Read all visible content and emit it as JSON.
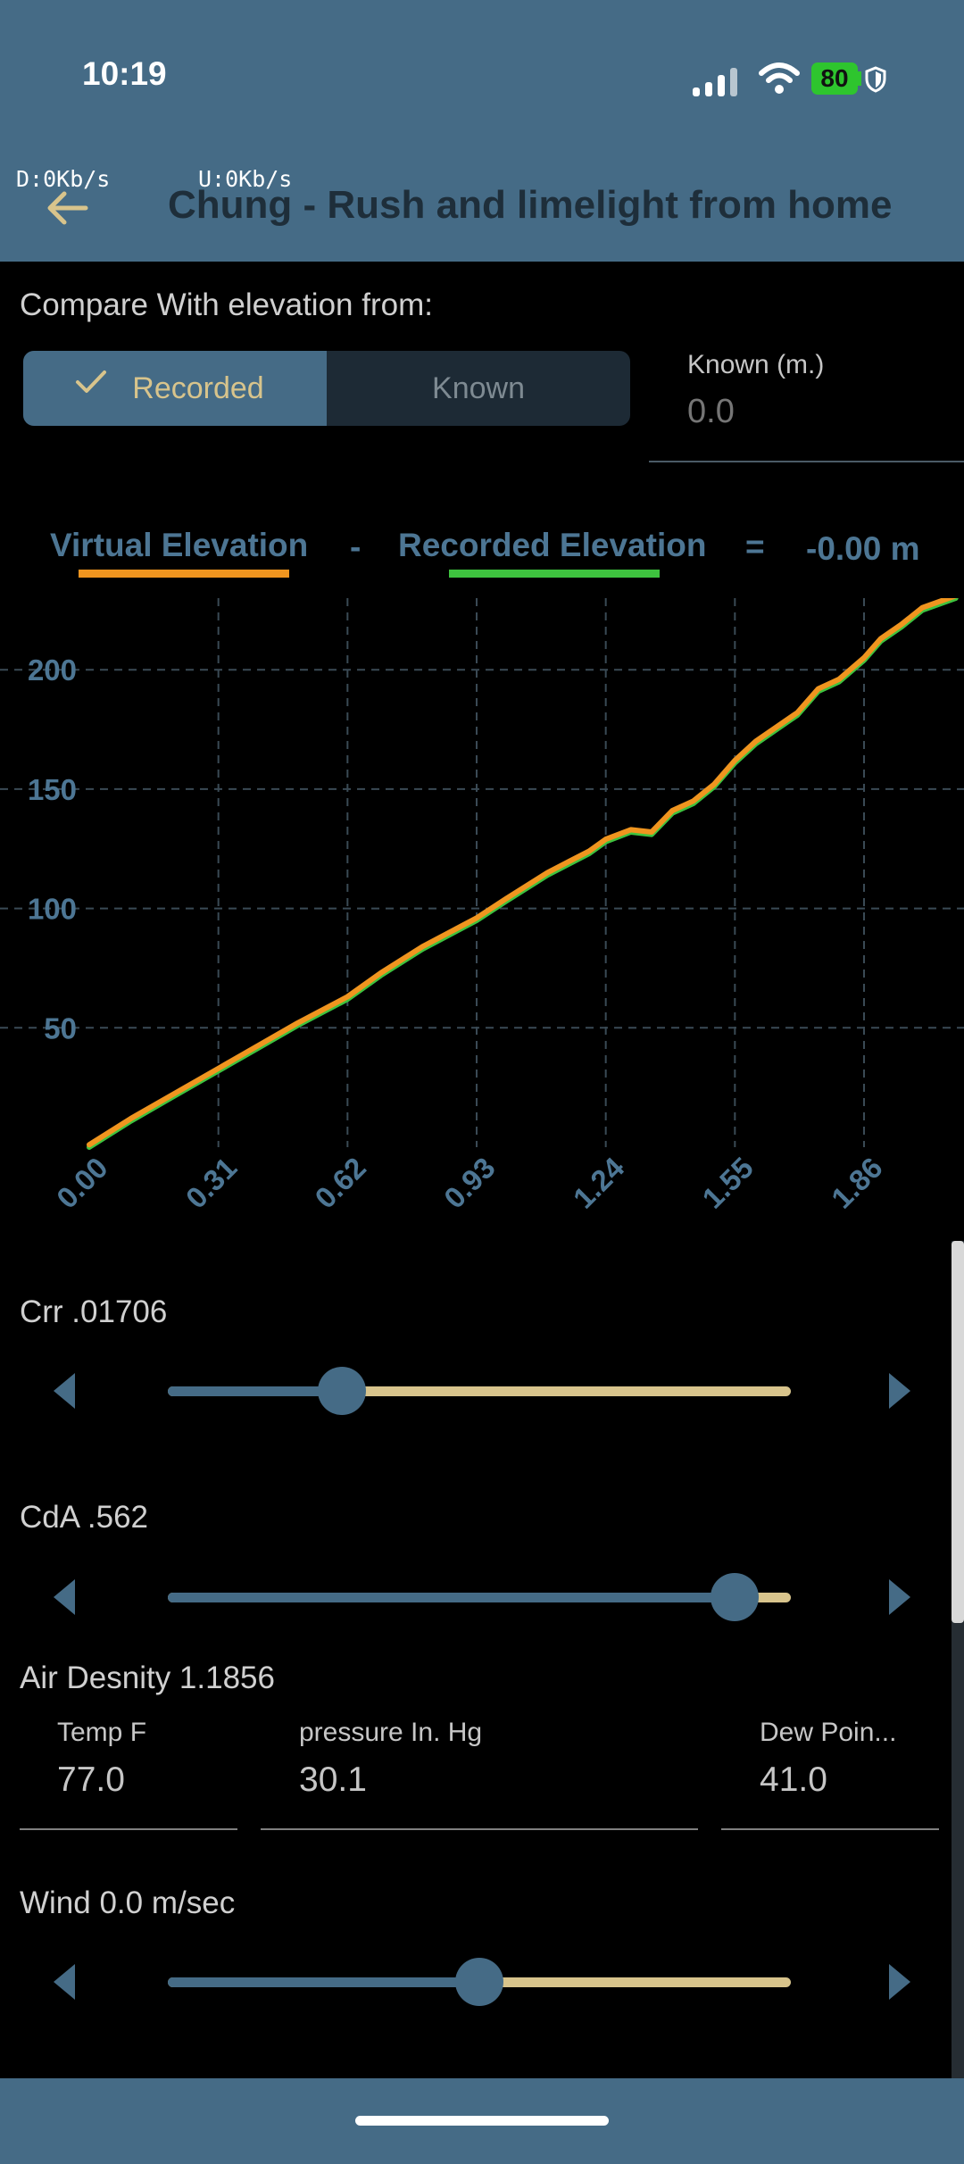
{
  "status_bar": {
    "time": "10:19",
    "battery": "80",
    "icons": [
      "signal-icon",
      "wifi-icon",
      "battery-icon",
      "shield-icon"
    ]
  },
  "app_bar": {
    "download": "D:0Kb/s",
    "upload": "U:0Kb/s",
    "title": "Chung - Rush and limelight from home",
    "back_icon": "arrow-left-icon"
  },
  "compare": {
    "label": "Compare With elevation from:",
    "options": [
      "Recorded",
      "Known"
    ],
    "selected": "Recorded",
    "known_label": "Known (m.)",
    "known_placeholder": "0.0"
  },
  "legend": {
    "virtual": "Virtual Elevation",
    "minus": "-",
    "recorded": "Recorded Elevation",
    "equals": "=",
    "difference": "-0.00 m",
    "virtual_color": "#f0951f",
    "recorded_color": "#3ec33f"
  },
  "chart_data": {
    "type": "line",
    "x_ticks": [
      "0.00",
      "0.31",
      "0.62",
      "0.93",
      "1.24",
      "1.55",
      "1.86"
    ],
    "y_ticks": [
      "50",
      "100",
      "150",
      "200"
    ],
    "xlim": [
      0,
      2.1
    ],
    "ylim": [
      0,
      230
    ],
    "grid": true,
    "series": [
      {
        "name": "Virtual Elevation",
        "color": "#f0951f",
        "x": [
          0,
          0.1,
          0.2,
          0.31,
          0.4,
          0.5,
          0.62,
          0.7,
          0.8,
          0.93,
          1.0,
          1.1,
          1.2,
          1.24,
          1.3,
          1.35,
          1.4,
          1.45,
          1.5,
          1.55,
          1.6,
          1.7,
          1.75,
          1.8,
          1.86,
          1.9,
          1.95,
          2.0,
          2.08
        ],
        "y": [
          1,
          12,
          22,
          33,
          42,
          52,
          63,
          73,
          84,
          96,
          104,
          115,
          124,
          129,
          133,
          132,
          141,
          145,
          152,
          162,
          170,
          182,
          192,
          196,
          205,
          213,
          219,
          226,
          231
        ]
      },
      {
        "name": "Recorded Elevation",
        "color": "#3ec33f",
        "x": [
          0,
          0.1,
          0.2,
          0.31,
          0.4,
          0.5,
          0.62,
          0.7,
          0.8,
          0.93,
          1.0,
          1.1,
          1.2,
          1.24,
          1.3,
          1.35,
          1.4,
          1.45,
          1.5,
          1.55,
          1.6,
          1.7,
          1.75,
          1.8,
          1.86,
          1.9,
          1.95,
          2.0,
          2.08
        ],
        "y": [
          0,
          11,
          21,
          32,
          41,
          51,
          62,
          72,
          83,
          95,
          103,
          114,
          123,
          128,
          132,
          131,
          140,
          144,
          151,
          161,
          169,
          181,
          191,
          195,
          204,
          212,
          218,
          225,
          230
        ]
      }
    ]
  },
  "crr": {
    "label": "Crr .01706",
    "value_fraction": 0.28
  },
  "cda": {
    "label": "CdA .562",
    "value_fraction": 0.91
  },
  "air": {
    "label": "Air Desnity 1.1856",
    "temp_label": "Temp F",
    "temp_value": "77.0",
    "pressure_label": "pressure In. Hg",
    "pressure_value": "30.1",
    "dew_label": "Dew Poin...",
    "dew_value": "41.0"
  },
  "wind": {
    "label": "Wind 0.0 m/sec",
    "value_fraction": 0.5
  },
  "colors": {
    "app_bar": "#456b86",
    "slider_active": "#456b86",
    "slider_inactive": "#d8c48c",
    "tick_label": "#4d7694"
  }
}
